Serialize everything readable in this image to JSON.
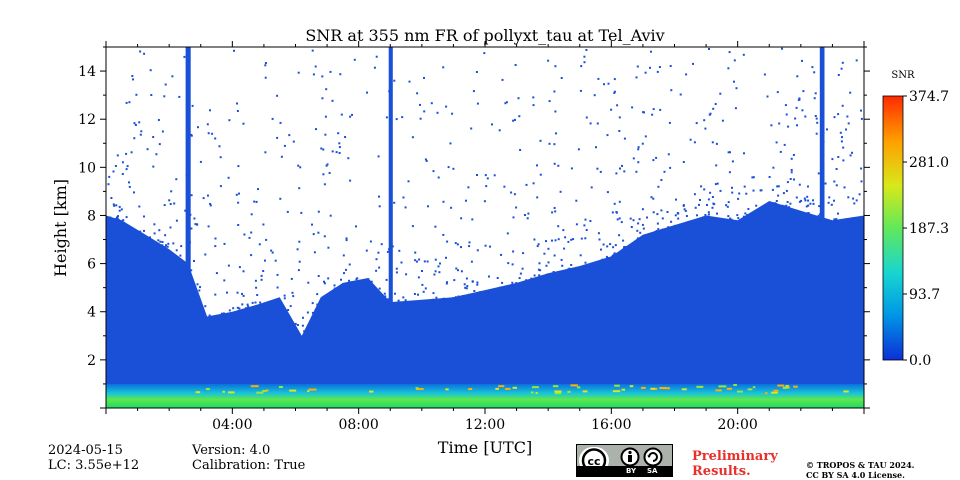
{
  "chart_data": {
    "type": "heatmap",
    "title": "SNR at 355 nm FR of pollyxt_tau at Tel_Aviv",
    "xlabel": "Time [UTC]",
    "ylabel": "Height [km]",
    "xlim_hours": [
      0,
      24
    ],
    "ylim_km": [
      0,
      15
    ],
    "x_ticks": [
      {
        "value": 4,
        "label": "04:00"
      },
      {
        "value": 8,
        "label": "08:00"
      },
      {
        "value": 12,
        "label": "12:00"
      },
      {
        "value": 16,
        "label": "16:00"
      },
      {
        "value": 20,
        "label": "20:00"
      }
    ],
    "y_ticks": [
      {
        "value": 2,
        "label": "2"
      },
      {
        "value": 4,
        "label": "4"
      },
      {
        "value": 6,
        "label": "6"
      },
      {
        "value": 8,
        "label": "8"
      },
      {
        "value": 10,
        "label": "10"
      },
      {
        "value": 12,
        "label": "12"
      },
      {
        "value": 14,
        "label": "14"
      }
    ],
    "colorbar": {
      "label": "SNR",
      "min": 0.0,
      "max": 374.7,
      "ticks": [
        {
          "value": 0.0,
          "label": "0.0"
        },
        {
          "value": 93.7,
          "label": "93.7"
        },
        {
          "value": 187.3,
          "label": "187.3"
        },
        {
          "value": 281.0,
          "label": "281.0"
        },
        {
          "value": 374.7,
          "label": "374.7"
        }
      ],
      "colors": [
        "#0c2fd6",
        "#0096e6",
        "#17d6d0",
        "#62e85a",
        "#d8e81a",
        "#ff9f00",
        "#ff2a00"
      ]
    },
    "signal_top_profile": [
      {
        "t": 0.0,
        "h": 8.0
      },
      {
        "t": 0.5,
        "h": 7.8
      },
      {
        "t": 1.0,
        "h": 7.4
      },
      {
        "t": 1.5,
        "h": 7.0
      },
      {
        "t": 2.0,
        "h": 6.6
      },
      {
        "t": 2.4,
        "h": 6.2
      },
      {
        "t": 2.6,
        "h": 6.0
      },
      {
        "t": 3.2,
        "h": 3.8
      },
      {
        "t": 4.0,
        "h": 4.0
      },
      {
        "t": 4.8,
        "h": 4.3
      },
      {
        "t": 5.5,
        "h": 4.6
      },
      {
        "t": 6.2,
        "h": 3.0
      },
      {
        "t": 6.8,
        "h": 4.6
      },
      {
        "t": 7.5,
        "h": 5.2
      },
      {
        "t": 8.3,
        "h": 5.4
      },
      {
        "t": 9.0,
        "h": 4.4
      },
      {
        "t": 10.0,
        "h": 4.5
      },
      {
        "t": 11.0,
        "h": 4.6
      },
      {
        "t": 12.0,
        "h": 4.9
      },
      {
        "t": 13.0,
        "h": 5.2
      },
      {
        "t": 14.0,
        "h": 5.6
      },
      {
        "t": 15.0,
        "h": 5.9
      },
      {
        "t": 16.0,
        "h": 6.3
      },
      {
        "t": 17.0,
        "h": 7.2
      },
      {
        "t": 18.0,
        "h": 7.6
      },
      {
        "t": 19.0,
        "h": 8.0
      },
      {
        "t": 20.0,
        "h": 7.8
      },
      {
        "t": 21.0,
        "h": 8.6
      },
      {
        "t": 22.0,
        "h": 8.2
      },
      {
        "t": 23.0,
        "h": 7.8
      },
      {
        "t": 24.0,
        "h": 8.0
      }
    ],
    "full_column_bands_hours": [
      [
        2.52,
        2.68
      ],
      [
        8.95,
        9.08
      ],
      [
        22.6,
        22.75
      ]
    ],
    "near_surface_layer_km": [
      0.0,
      1.0
    ]
  },
  "footer": {
    "date": "2024-05-15",
    "lc": "LC: 3.55e+12",
    "version": "Version: 4.0",
    "calibration": "Calibration: True",
    "preliminary_line1": "Preliminary",
    "preliminary_line2": "Results.",
    "copyright_line1": "© TROPOS & TAU 2024.",
    "copyright_line2": "CC BY SA 4.0 License.",
    "cc_badge_by": "BY",
    "cc_badge_sa": "SA"
  }
}
